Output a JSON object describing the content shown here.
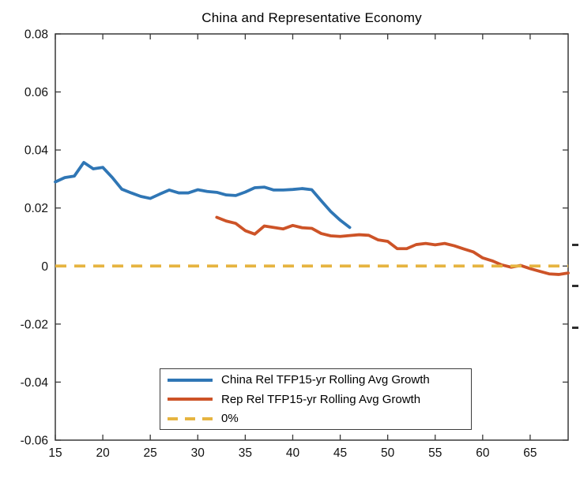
{
  "chart_data": {
    "type": "line",
    "title": "China and Representative Economy",
    "xlabel": "",
    "ylabel": "",
    "xlim": [
      15,
      69
    ],
    "ylim": [
      -0.06,
      0.08
    ],
    "x_ticks": [
      15,
      20,
      25,
      30,
      35,
      40,
      45,
      50,
      55,
      60,
      65
    ],
    "y_ticks": [
      -0.06,
      -0.04,
      -0.02,
      0,
      0.02,
      0.04,
      0.06,
      0.08
    ],
    "y_tick_labels": [
      "-0.06",
      "-0.04",
      "-0.02",
      "0",
      "0.02",
      "0.04",
      "0.06",
      "0.08"
    ],
    "grid": false,
    "legend_position": "south-inside",
    "axis_color": "#383838",
    "series": [
      {
        "name": "China Rel TFP15-yr Rolling Avg Growth",
        "color": "#2f76b5",
        "style": "solid",
        "x_start": 15,
        "x_step": 1,
        "values": [
          0.029,
          0.0305,
          0.031,
          0.0357,
          0.0335,
          0.034,
          0.0305,
          0.0265,
          0.0252,
          0.024,
          0.0233,
          0.0248,
          0.0262,
          0.0252,
          0.0252,
          0.0263,
          0.0257,
          0.0254,
          0.0245,
          0.0243,
          0.0255,
          0.027,
          0.0272,
          0.0262,
          0.0262,
          0.0264,
          0.0267,
          0.0263,
          0.0225,
          0.0188,
          0.0158,
          0.0133
        ]
      },
      {
        "name": "Rep Rel TFP15-yr Rolling Avg Growth",
        "color": "#cd5327",
        "style": "solid",
        "x_start": 32,
        "x_step": 1,
        "values": [
          0.0168,
          0.0155,
          0.0147,
          0.0122,
          0.011,
          0.0138,
          0.0133,
          0.0128,
          0.014,
          0.0132,
          0.013,
          0.0112,
          0.0104,
          0.0102,
          0.0105,
          0.0108,
          0.0106,
          0.009,
          0.0085,
          0.006,
          0.006,
          0.0074,
          0.0078,
          0.0073,
          0.0078,
          0.007,
          0.0059,
          0.0049,
          0.0028,
          0.0018,
          0.0004,
          -0.0004,
          0.0002,
          -0.0009,
          -0.0018,
          -0.0027,
          -0.0029,
          -0.0024
        ]
      },
      {
        "name": "0%",
        "color": "#e6b440",
        "style": "dashed",
        "y_const": 0
      }
    ]
  }
}
